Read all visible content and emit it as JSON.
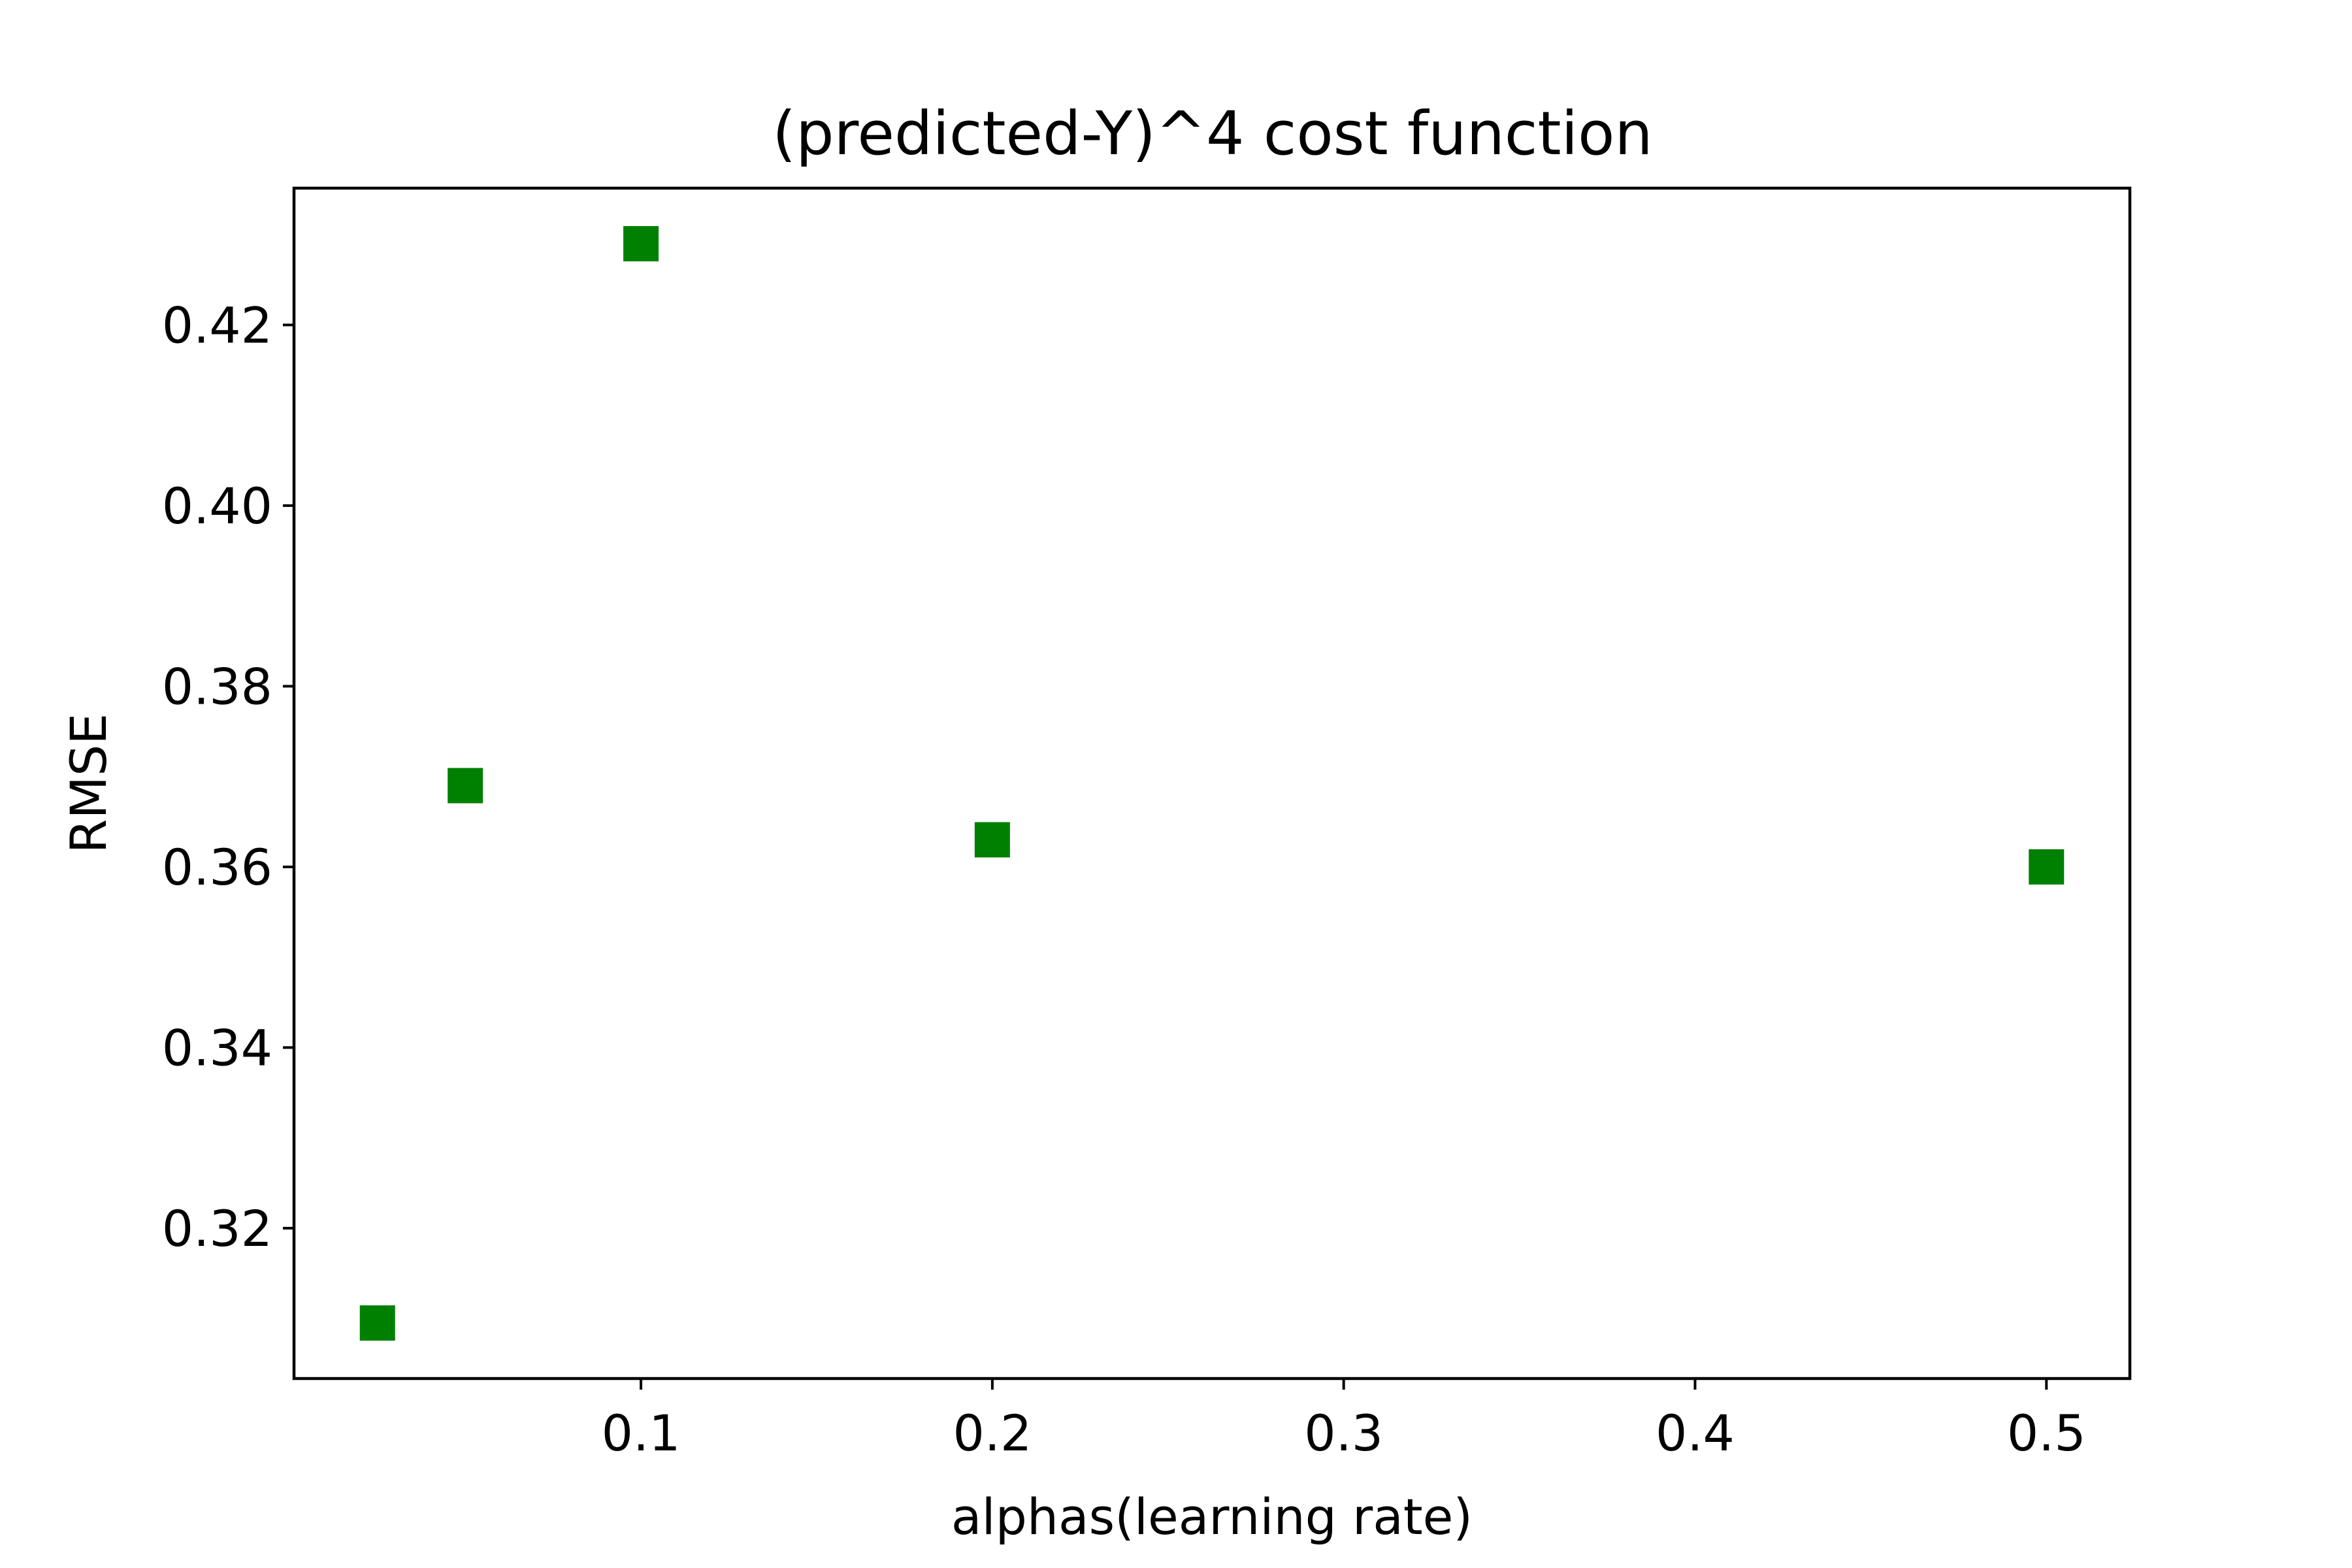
{
  "chart_data": {
    "type": "scatter",
    "title": "(predicted-Y)^4 cost function",
    "xlabel": "alphas(learning rate)",
    "ylabel": "RMSE",
    "x": [
      0.025,
      0.05,
      0.1,
      0.2,
      0.5
    ],
    "series": [
      {
        "values": [
          0.3095,
          0.369,
          0.429,
          0.363,
          0.36
        ],
        "color": "#008000",
        "marker": "square"
      }
    ],
    "xlim": [
      0.00125,
      0.52375
    ],
    "ylim": [
      0.30335,
      0.43515
    ],
    "xticks": [
      "0.1",
      "0.2",
      "0.3",
      "0.4",
      "0.5"
    ],
    "xtick_values": [
      0.1,
      0.2,
      0.3,
      0.4,
      0.5
    ],
    "yticks": [
      "0.32",
      "0.34",
      "0.36",
      "0.38",
      "0.40",
      "0.42"
    ],
    "ytick_values": [
      0.32,
      0.34,
      0.36,
      0.38,
      0.4,
      0.42
    ],
    "grid": false,
    "legend": "none"
  }
}
